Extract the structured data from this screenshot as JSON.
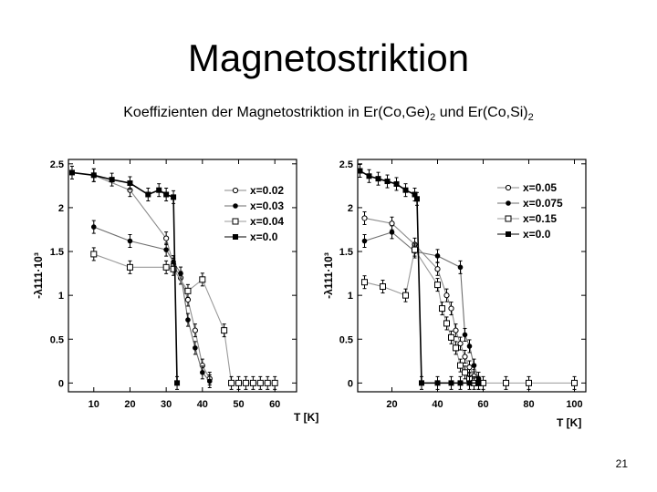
{
  "slide": {
    "title": "Magnetostriktion",
    "subtitle_parts": [
      "Koeffizienten der Magnetostriktion in Er(Co,Ge)",
      "2",
      " und Er(Co,Si)",
      "2"
    ],
    "page_number": "21"
  },
  "chart_data": [
    {
      "type": "line",
      "ylabel": "-λ111·10³",
      "xlabel": "T [K]",
      "xlim": [
        3,
        66
      ],
      "ylim": [
        -0.1,
        2.55
      ],
      "xticks": [
        10,
        20,
        30,
        40,
        50,
        60
      ],
      "yticks": [
        0,
        0.5,
        1,
        1.5,
        2,
        2.5
      ],
      "ytick_labels": [
        "0",
        "0.5",
        "1",
        "1.5",
        "2",
        "2.5"
      ],
      "legend_position": "top-right",
      "series": [
        {
          "name": "x=0.02",
          "marker": "open-circle",
          "x": [
            10,
            20,
            30,
            32,
            34,
            36,
            38,
            40,
            42
          ],
          "y": [
            2.37,
            2.2,
            1.65,
            1.35,
            1.2,
            0.95,
            0.6,
            0.2,
            0.05
          ]
        },
        {
          "name": "x=0.03",
          "marker": "star",
          "x": [
            10,
            20,
            30,
            32,
            34,
            36,
            38,
            40,
            42
          ],
          "y": [
            1.78,
            1.62,
            1.52,
            1.38,
            1.25,
            0.72,
            0.4,
            0.12,
            0.02
          ]
        },
        {
          "name": "x=0.04",
          "marker": "open-square",
          "x": [
            10,
            20,
            30,
            32,
            36,
            40,
            46,
            48,
            50,
            52,
            54,
            56,
            58,
            60
          ],
          "y": [
            1.47,
            1.32,
            1.32,
            1.3,
            1.05,
            1.18,
            0.6,
            0.0,
            0.0,
            0.0,
            0.0,
            0.0,
            0.0,
            0.0
          ]
        },
        {
          "name": "x=0.0",
          "marker": "filled-square",
          "x": [
            4,
            10,
            15,
            20,
            25,
            28,
            30,
            32,
            33
          ],
          "y": [
            2.4,
            2.37,
            2.32,
            2.28,
            2.15,
            2.2,
            2.15,
            2.12,
            0.0
          ]
        }
      ]
    },
    {
      "type": "line",
      "ylabel": "-λ111·10³",
      "xlabel": "T [K]",
      "xlim": [
        5,
        105
      ],
      "ylim": [
        -0.1,
        2.55
      ],
      "xticks": [
        20,
        40,
        60,
        80,
        100
      ],
      "yticks": [
        0,
        0.5,
        1,
        1.5,
        2,
        2.5
      ],
      "ytick_labels": [
        "0",
        "0.5",
        "1",
        "1.5",
        "2",
        "2.5"
      ],
      "legend_position": "top-right",
      "series": [
        {
          "name": "x=0.05",
          "marker": "open-circle",
          "x": [
            8,
            20,
            30,
            40,
            44,
            46,
            48,
            50,
            52,
            54,
            56
          ],
          "y": [
            1.88,
            1.82,
            1.58,
            1.3,
            1.0,
            0.85,
            0.6,
            0.45,
            0.3,
            0.18,
            0.08
          ]
        },
        {
          "name": "x=0.075",
          "marker": "star",
          "x": [
            8,
            20,
            30,
            40,
            50,
            52,
            54,
            56,
            58
          ],
          "y": [
            1.62,
            1.72,
            1.5,
            1.45,
            1.32,
            0.55,
            0.42,
            0.2,
            0.05
          ]
        },
        {
          "name": "x=0.15",
          "marker": "open-square",
          "x": [
            8,
            16,
            26,
            30,
            40,
            42,
            44,
            46,
            48,
            50,
            52,
            54,
            56,
            58,
            60,
            70,
            80,
            100
          ],
          "y": [
            1.15,
            1.1,
            1.0,
            1.52,
            1.12,
            0.85,
            0.68,
            0.52,
            0.4,
            0.2,
            0.12,
            0.05,
            0.0,
            0.0,
            0.0,
            0.0,
            0.0,
            0.0
          ]
        },
        {
          "name": "x=0.0",
          "marker": "filled-square",
          "x": [
            6,
            10,
            14,
            18,
            22,
            26,
            30,
            31,
            33,
            40,
            46,
            50,
            54,
            58
          ],
          "y": [
            2.42,
            2.36,
            2.33,
            2.3,
            2.27,
            2.2,
            2.15,
            2.1,
            0.0,
            0.0,
            0.0,
            0.0,
            0.0,
            0.0
          ]
        }
      ]
    }
  ]
}
